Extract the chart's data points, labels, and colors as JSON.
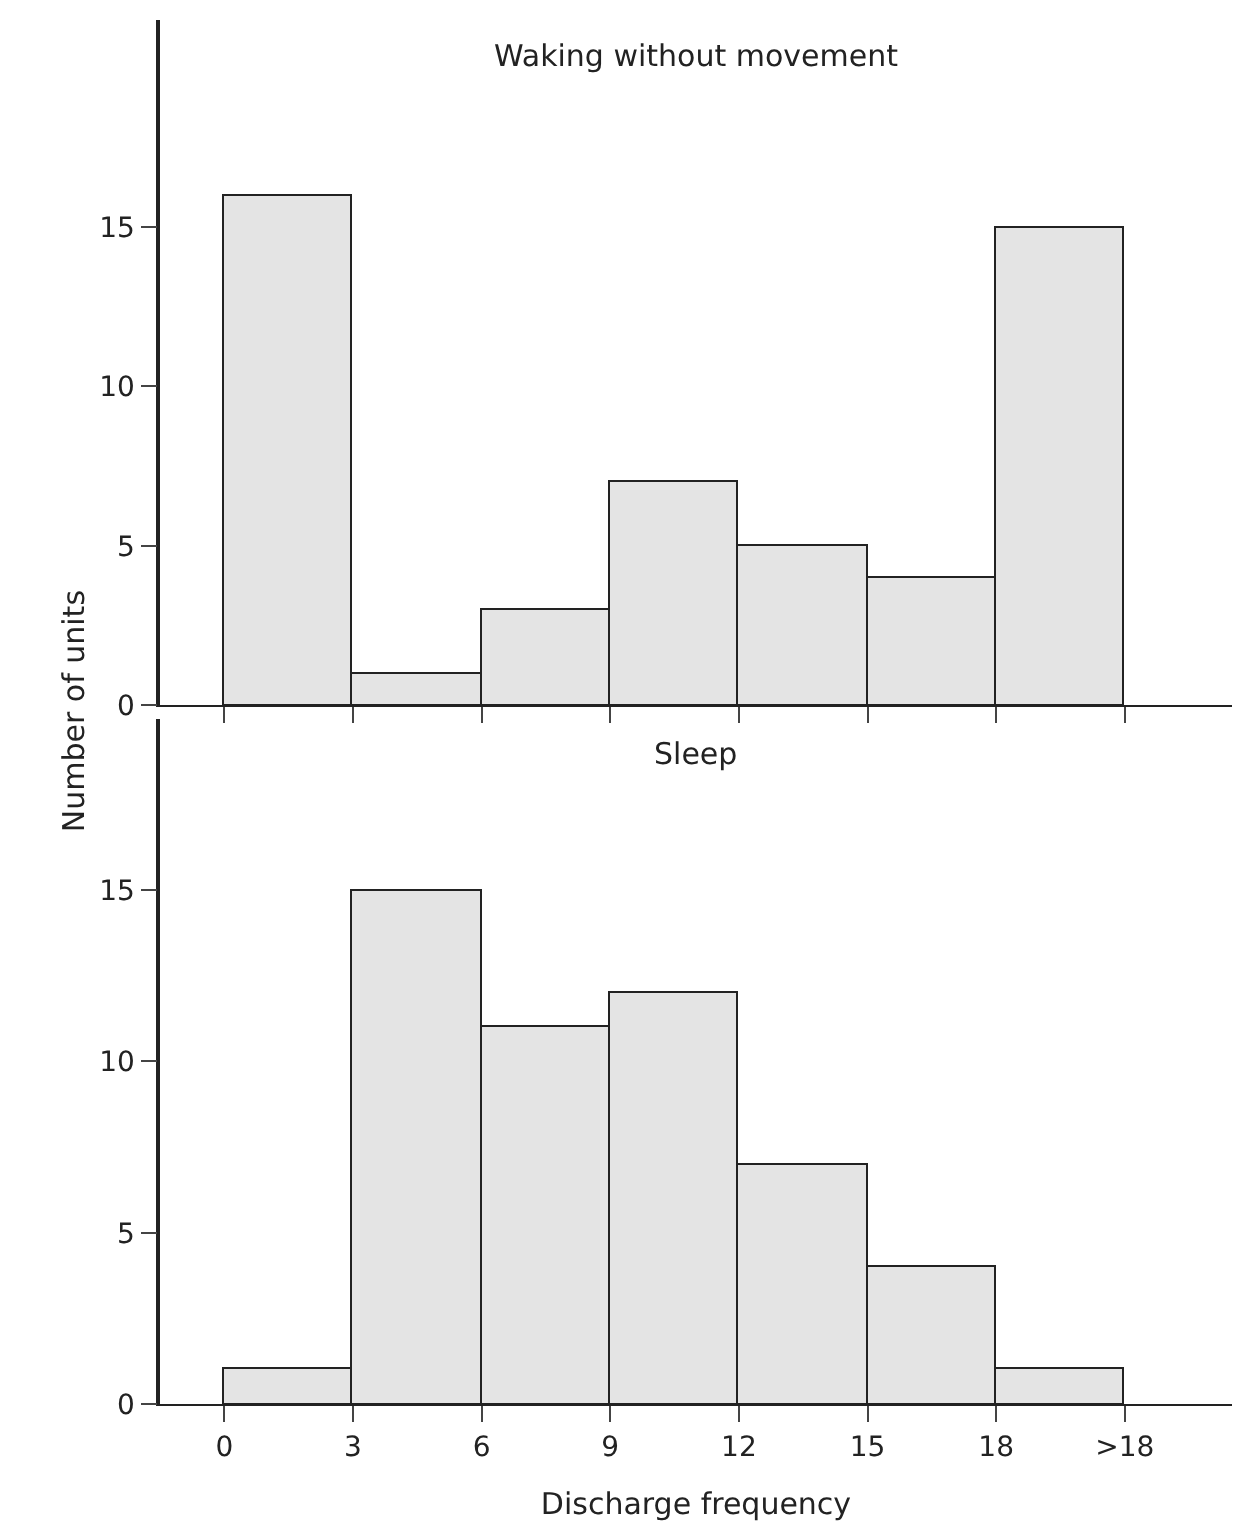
{
  "chart_data": [
    {
      "type": "histogram",
      "title": "Waking without movement",
      "ylabel": "Number of units",
      "bins": [
        0,
        3,
        6,
        9,
        12,
        15,
        18,
        21
      ],
      "values": [
        16,
        1,
        3,
        7,
        5,
        4,
        15
      ],
      "color": "#e4e4e4",
      "xlim": [
        -1.5,
        23.5
      ],
      "xticks": [
        {
          "value": 0,
          "label": null
        },
        {
          "value": 3,
          "label": null
        },
        {
          "value": 6,
          "label": null
        },
        {
          "value": 9,
          "label": null
        },
        {
          "value": 12,
          "label": null
        },
        {
          "value": 15,
          "label": null
        },
        {
          "value": 18,
          "label": null
        },
        {
          "value": 21,
          "label": null
        }
      ],
      "ylim": [
        0,
        21.5
      ],
      "yticks": [
        0,
        5,
        10,
        15
      ],
      "tick_labels": "y",
      "grid": false
    },
    {
      "type": "histogram",
      "title": "Sleep",
      "xlabel": "Discharge frequency",
      "bins": [
        0,
        3,
        6,
        9,
        12,
        15,
        18,
        21
      ],
      "values": [
        1,
        15,
        11,
        12,
        7,
        4,
        1
      ],
      "color": "#e4e4e4",
      "xlim": [
        -1.5,
        23.5
      ],
      "xticks": [
        0,
        3,
        6,
        9,
        12,
        15,
        18,
        {
          "value": 21,
          "label": ">18"
        }
      ],
      "ylim": [
        0,
        20
      ],
      "yticks": [
        0,
        5,
        10,
        15
      ],
      "grid": false
    }
  ]
}
